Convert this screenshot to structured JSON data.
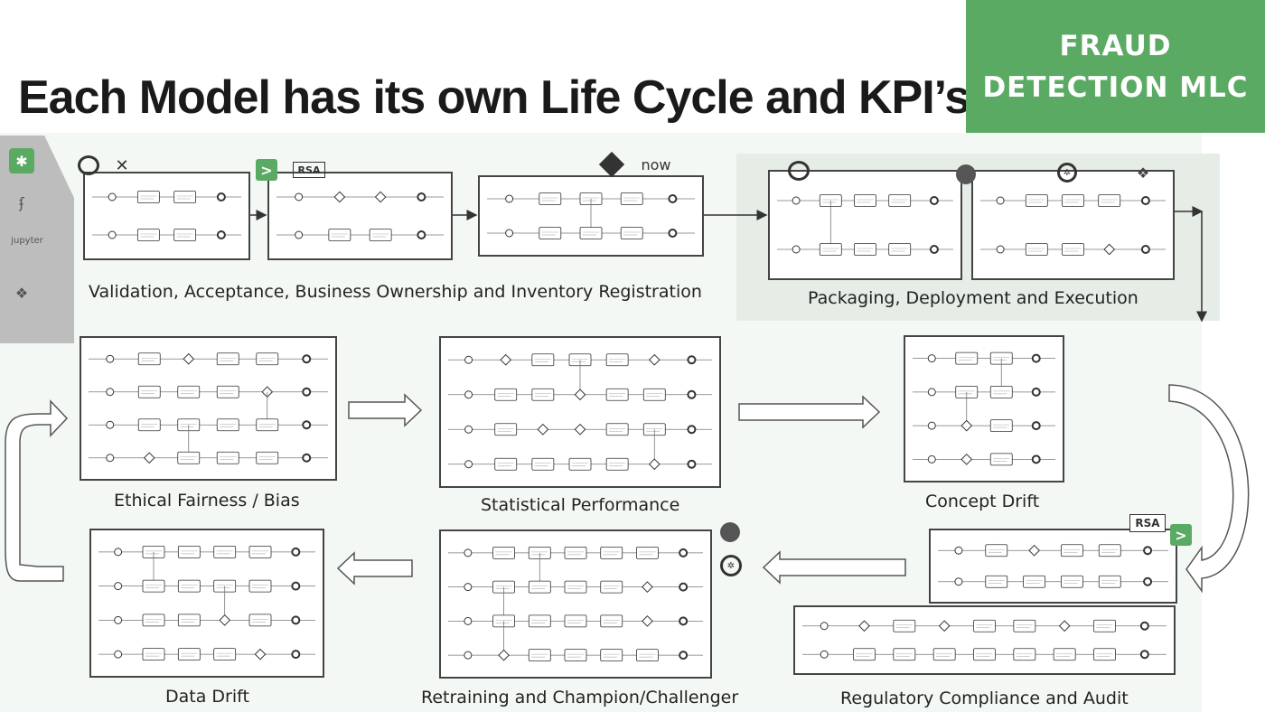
{
  "header": {
    "title": "Each Model has its own Life Cycle and KPI’s",
    "badge_line1": "FRAUD",
    "badge_line2": "DETECTION MLC"
  },
  "logos": {
    "rsa": "RSA",
    "now": "now",
    "jupyter": "jupyter"
  },
  "stages": [
    {
      "label": "Validation, Acceptance, Business Ownership and Inventory Registration"
    },
    {
      "label": "Packaging, Deployment and Execution"
    },
    {
      "label": "Ethical Fairness / Bias"
    },
    {
      "label": "Statistical Performance"
    },
    {
      "label": "Concept Drift"
    },
    {
      "label": "Data Drift"
    },
    {
      "label": "Retraining and Champion/Challenger"
    },
    {
      "label": "Regulatory Compliance and Audit"
    }
  ],
  "colors": {
    "badge": "#5aaa64",
    "arrow_fill": "#ffffff",
    "arrow_stroke": "#555555"
  }
}
